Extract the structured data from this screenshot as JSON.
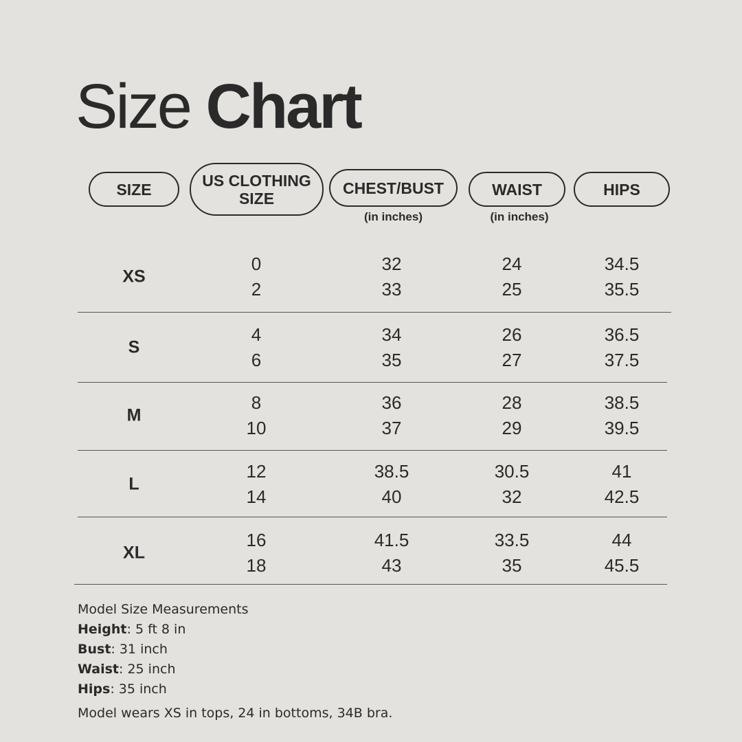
{
  "title": {
    "light": "Size",
    "bold": "Chart"
  },
  "headers": [
    {
      "label": "SIZE"
    },
    {
      "label": "US CLOTHING SIZE"
    },
    {
      "label": "CHEST/BUST",
      "sub": "(in inches)"
    },
    {
      "label": "WAIST",
      "sub": "(in inches)"
    },
    {
      "label": "HIPS"
    }
  ],
  "rows": [
    {
      "size": "XS",
      "us": [
        "0",
        "2"
      ],
      "chest": [
        "32",
        "33"
      ],
      "waist": [
        "24",
        "25"
      ],
      "hips": [
        "34.5",
        "35.5"
      ]
    },
    {
      "size": "S",
      "us": [
        "4",
        "6"
      ],
      "chest": [
        "34",
        "35"
      ],
      "waist": [
        "26",
        "27"
      ],
      "hips": [
        "36.5",
        "37.5"
      ]
    },
    {
      "size": "M",
      "us": [
        "8",
        "10"
      ],
      "chest": [
        "36",
        "37"
      ],
      "waist": [
        "28",
        "29"
      ],
      "hips": [
        "38.5",
        "39.5"
      ]
    },
    {
      "size": "L",
      "us": [
        "12",
        "14"
      ],
      "chest": [
        "38.5",
        "40"
      ],
      "waist": [
        "30.5",
        "32"
      ],
      "hips": [
        "41",
        "42.5"
      ]
    },
    {
      "size": "XL",
      "us": [
        "16",
        "18"
      ],
      "chest": [
        "41.5",
        "43"
      ],
      "waist": [
        "33.5",
        "35"
      ],
      "hips": [
        "44",
        "45.5"
      ]
    }
  ],
  "model": {
    "heading": "Model Size Measurements",
    "items": [
      {
        "label": "Height",
        "value": ": 5 ft 8 in"
      },
      {
        "label": "Bust",
        "value": ": 31 inch"
      },
      {
        "label": "Waist",
        "value": ": 25 inch"
      },
      {
        "label": "Hips",
        "value": ": 35 inch"
      }
    ],
    "note": "Model wears XS in tops, 24 in bottoms, 34B bra."
  }
}
